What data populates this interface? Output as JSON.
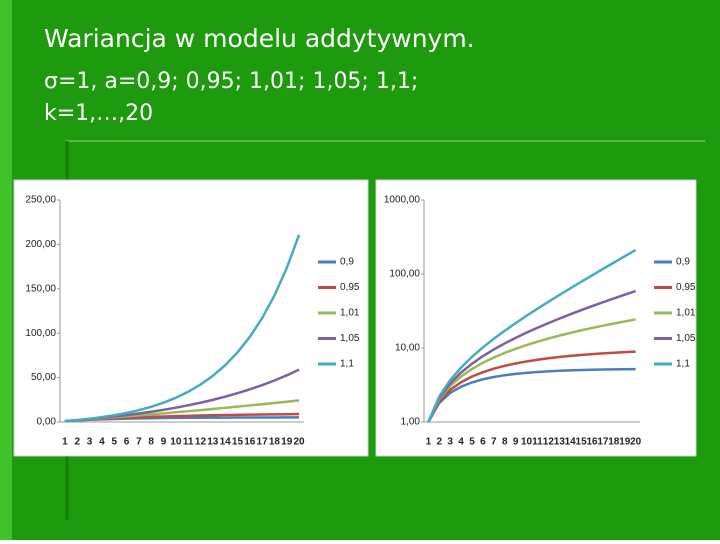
{
  "slide": {
    "title": "Wariancja w modelu addytywnym.",
    "lines": [
      "σ=1, a=0,9; 0,95; 1,01; 1,05; 1,1;",
      "k=1,…,20"
    ]
  },
  "chart_data": [
    {
      "type": "line",
      "categories": [
        "1",
        "2",
        "3",
        "4",
        "5",
        "6",
        "7",
        "8",
        "9",
        "10",
        "11",
        "12",
        "13",
        "14",
        "15",
        "16",
        "17",
        "18",
        "19",
        "20"
      ],
      "ylim": [
        0,
        250
      ],
      "yticks": [
        {
          "value": 0,
          "label": "0,00"
        },
        {
          "value": 50,
          "label": "50,00"
        },
        {
          "value": 100,
          "label": "100,00"
        },
        {
          "value": 150,
          "label": "150,00"
        },
        {
          "value": 200,
          "label": "200,00"
        },
        {
          "value": 250,
          "label": "250,00"
        }
      ],
      "yscale": "linear",
      "grid": false,
      "legend": "right",
      "series": [
        {
          "name": "0,9",
          "color": "#4a7ebb",
          "values": [
            1,
            1.81,
            2.47,
            3.0,
            3.43,
            3.78,
            4.06,
            4.29,
            4.47,
            4.62,
            4.74,
            4.84,
            4.92,
            4.99,
            5.04,
            5.08,
            5.12,
            5.14,
            5.17,
            5.19
          ]
        },
        {
          "name": "0,95",
          "color": "#be4b48",
          "values": [
            1,
            1.9,
            2.72,
            3.45,
            4.12,
            4.71,
            5.25,
            5.74,
            6.18,
            6.58,
            6.94,
            7.26,
            7.55,
            7.82,
            8.05,
            8.27,
            8.46,
            8.64,
            8.8,
            8.94
          ]
        },
        {
          "name": "1,01",
          "color": "#98b954",
          "values": [
            1,
            2.02,
            3.06,
            4.12,
            5.21,
            6.31,
            7.44,
            8.59,
            9.76,
            10.95,
            12.17,
            13.42,
            14.69,
            15.98,
            17.31,
            18.65,
            20.03,
            21.43,
            22.86,
            24.32
          ]
        },
        {
          "name": "1,05",
          "color": "#7d60a0",
          "values": [
            1,
            2.1,
            3.32,
            4.66,
            6.14,
            7.76,
            9.56,
            11.54,
            13.72,
            16.13,
            18.78,
            21.71,
            24.93,
            28.49,
            32.41,
            36.73,
            41.5,
            46.75,
            52.54,
            58.93
          ]
        },
        {
          "name": "1,1",
          "color": "#46aac5",
          "values": [
            1,
            2.21,
            3.67,
            5.45,
            7.59,
            10.18,
            13.32,
            17.12,
            21.71,
            27.27,
            34,
            42.14,
            51.99,
            63.91,
            78.33,
            95.78,
            116.89,
            142.44,
            173.35,
            210.76
          ]
        }
      ]
    },
    {
      "type": "line",
      "categories": [
        "1",
        "2",
        "3",
        "4",
        "5",
        "6",
        "7",
        "8",
        "9",
        "10",
        "11",
        "12",
        "13",
        "14",
        "15",
        "16",
        "17",
        "18",
        "19",
        "20"
      ],
      "ylim": [
        1,
        1000
      ],
      "yticks": [
        {
          "value": 1,
          "label": "1,00"
        },
        {
          "value": 10,
          "label": "10,00"
        },
        {
          "value": 100,
          "label": "100,00"
        },
        {
          "value": 1000,
          "label": "1000,00"
        }
      ],
      "yscale": "log",
      "grid": false,
      "legend": "right",
      "series": [
        {
          "name": "0,9",
          "color": "#4a7ebb",
          "values": [
            1,
            1.81,
            2.47,
            3.0,
            3.43,
            3.78,
            4.06,
            4.29,
            4.47,
            4.62,
            4.74,
            4.84,
            4.92,
            4.99,
            5.04,
            5.08,
            5.12,
            5.14,
            5.17,
            5.19
          ]
        },
        {
          "name": "0,95",
          "color": "#be4b48",
          "values": [
            1,
            1.9,
            2.72,
            3.45,
            4.12,
            4.71,
            5.25,
            5.74,
            6.18,
            6.58,
            6.94,
            7.26,
            7.55,
            7.82,
            8.05,
            8.27,
            8.46,
            8.64,
            8.8,
            8.94
          ]
        },
        {
          "name": "1,01",
          "color": "#98b954",
          "values": [
            1,
            2.02,
            3.06,
            4.12,
            5.21,
            6.31,
            7.44,
            8.59,
            9.76,
            10.95,
            12.17,
            13.42,
            14.69,
            15.98,
            17.31,
            18.65,
            20.03,
            21.43,
            22.86,
            24.32
          ]
        },
        {
          "name": "1,05",
          "color": "#7d60a0",
          "values": [
            1,
            2.1,
            3.32,
            4.66,
            6.14,
            7.76,
            9.56,
            11.54,
            13.72,
            16.13,
            18.78,
            21.71,
            24.93,
            28.49,
            32.41,
            36.73,
            41.5,
            46.75,
            52.54,
            58.93
          ]
        },
        {
          "name": "1,1",
          "color": "#46aac5",
          "values": [
            1,
            2.21,
            3.67,
            5.45,
            7.59,
            10.18,
            13.32,
            17.12,
            21.71,
            27.27,
            34,
            42.14,
            51.99,
            63.91,
            78.33,
            95.78,
            116.89,
            142.44,
            173.35,
            210.76
          ]
        }
      ]
    }
  ]
}
